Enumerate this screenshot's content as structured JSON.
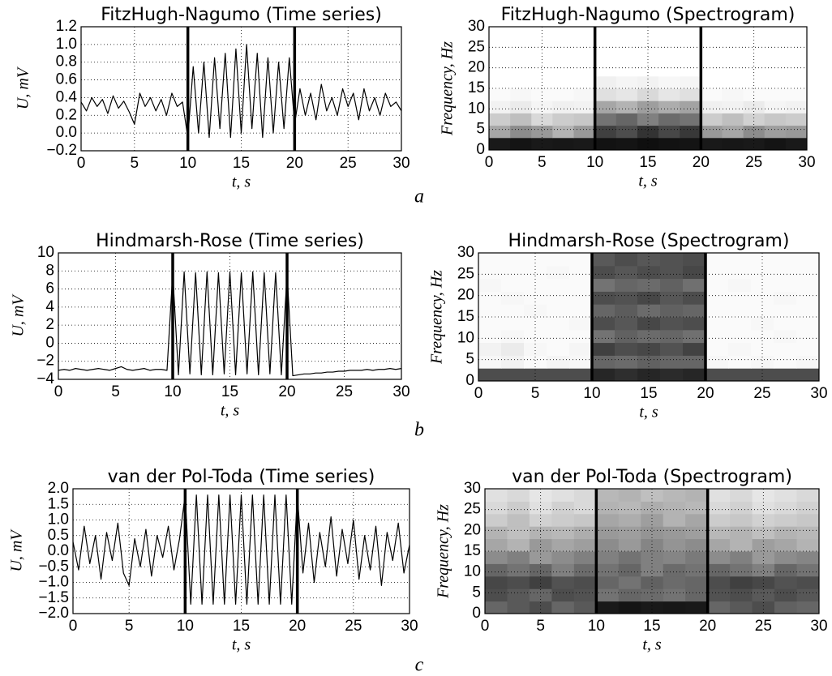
{
  "chart_data": [
    {
      "type": "line",
      "title": "FitzHugh-Nagumo (Time series)",
      "x_label": "t, s",
      "y_label": "U, mV",
      "color": "#000000",
      "x": [
        0,
        0.5,
        1,
        1.5,
        2,
        2.5,
        3,
        3.5,
        4,
        4.5,
        5,
        5.5,
        6,
        6.5,
        7,
        7.5,
        8,
        8.5,
        9,
        9.5,
        10,
        10.5,
        11,
        11.5,
        12,
        12.5,
        13,
        13.5,
        14,
        14.5,
        15,
        15.5,
        16,
        16.5,
        17,
        17.5,
        18,
        18.5,
        19,
        19.5,
        20,
        20.5,
        21,
        21.5,
        22,
        22.5,
        23,
        23.5,
        24,
        24.5,
        25,
        25.5,
        26,
        26.5,
        27,
        27.5,
        28,
        28.5,
        29,
        29.5,
        30
      ],
      "values": [
        0.35,
        0.25,
        0.4,
        0.3,
        0.38,
        0.22,
        0.42,
        0.28,
        0.36,
        0.24,
        0.1,
        0.45,
        0.3,
        0.4,
        0.25,
        0.38,
        0.2,
        0.45,
        0.3,
        0.35,
        -0.05,
        0.75,
        0.0,
        0.8,
        -0.05,
        0.85,
        0.05,
        0.9,
        -0.05,
        0.95,
        0.0,
        1.0,
        0.05,
        0.9,
        -0.05,
        0.85,
        0.0,
        0.8,
        0.05,
        0.85,
        0.1,
        0.5,
        0.2,
        0.45,
        0.15,
        0.55,
        0.25,
        0.4,
        0.2,
        0.5,
        0.3,
        0.45,
        0.15,
        0.5,
        0.25,
        0.4,
        0.2,
        0.45,
        0.3,
        0.35,
        0.25
      ],
      "vlines": [
        10,
        20
      ],
      "xlim": [
        0,
        30
      ],
      "ylim": [
        -0.2,
        1.2
      ],
      "xticks": [
        0,
        5,
        10,
        15,
        20,
        25,
        30
      ],
      "yticks": [
        {
          "value": -0.2,
          "label": "−0.2"
        },
        {
          "value": 0,
          "label": "0.0"
        },
        0.2,
        0.4,
        0.6,
        0.8,
        {
          "value": 1,
          "label": "1.0"
        },
        1.2
      ],
      "grid": true
    },
    {
      "type": "heatmap",
      "title": "FitzHugh-Nagumo (Spectrogram)",
      "x_label": "t, s",
      "y_label": "Frequency, Hz",
      "xbins": [
        0,
        2,
        4,
        6,
        8,
        10,
        12,
        14,
        16,
        18,
        20,
        22,
        24,
        26,
        28,
        30
      ],
      "ybins": [
        0,
        3,
        6,
        9,
        12,
        15,
        18,
        21,
        24,
        27,
        30
      ],
      "z": [
        [
          0.9,
          0.92,
          0.9,
          0.91,
          0.9,
          0.93,
          0.92,
          0.94,
          0.93,
          0.92,
          0.9,
          0.91,
          0.9,
          0.92,
          0.9
        ],
        [
          0.35,
          0.45,
          0.4,
          0.3,
          0.4,
          0.75,
          0.7,
          0.8,
          0.72,
          0.78,
          0.4,
          0.35,
          0.45,
          0.38,
          0.4
        ],
        [
          0.2,
          0.25,
          0.15,
          0.2,
          0.22,
          0.55,
          0.6,
          0.5,
          0.58,
          0.55,
          0.2,
          0.25,
          0.18,
          0.22,
          0.2
        ],
        [
          0.05,
          0.08,
          0.04,
          0.06,
          0.05,
          0.35,
          0.3,
          0.38,
          0.32,
          0.36,
          0.06,
          0.05,
          0.08,
          0.04,
          0.05
        ],
        [
          0.02,
          0.03,
          0.02,
          0.02,
          0.03,
          0.12,
          0.1,
          0.15,
          0.1,
          0.12,
          0.02,
          0.03,
          0.02,
          0.02,
          0.02
        ],
        [
          0,
          0,
          0,
          0,
          0,
          0.06,
          0.04,
          0.05,
          0.03,
          0.04,
          0,
          0,
          0,
          0,
          0
        ],
        [
          0,
          0,
          0,
          0,
          0,
          0,
          0,
          0,
          0,
          0,
          0,
          0,
          0,
          0,
          0
        ],
        [
          0,
          0,
          0,
          0,
          0,
          0,
          0,
          0,
          0,
          0,
          0,
          0,
          0,
          0,
          0
        ],
        [
          0,
          0,
          0,
          0,
          0,
          0,
          0,
          0,
          0,
          0,
          0,
          0,
          0,
          0,
          0
        ],
        [
          0,
          0,
          0,
          0,
          0,
          0,
          0,
          0,
          0,
          0,
          0,
          0,
          0,
          0,
          0
        ]
      ],
      "vlines": [
        10,
        20
      ],
      "xlim": [
        0,
        30
      ],
      "ylim": [
        0,
        30
      ],
      "xticks": [
        0,
        5,
        10,
        15,
        20,
        25,
        30
      ],
      "yticks": [
        0,
        5,
        10,
        15,
        20,
        25,
        30
      ],
      "grid": true
    },
    {
      "type": "line",
      "title": "Hindmarsh-Rose (Time series)",
      "x_label": "t, s",
      "y_label": "U, mV",
      "color": "#000000",
      "x": [
        0,
        0.5,
        1,
        1.5,
        2,
        2.5,
        3,
        3.5,
        4,
        4.5,
        5,
        5.5,
        6,
        6.5,
        7,
        7.5,
        8,
        8.5,
        9,
        9.5,
        10,
        10.5,
        11,
        11.5,
        12,
        12.5,
        13,
        13.5,
        14,
        14.5,
        15,
        15.5,
        16,
        16.5,
        17,
        17.5,
        18,
        18.5,
        19,
        19.5,
        20,
        20.5,
        21,
        21.5,
        22,
        22.5,
        23,
        23.5,
        24,
        24.5,
        25,
        25.5,
        26,
        26.5,
        27,
        27.5,
        28,
        28.5,
        29,
        29.5,
        30
      ],
      "values": [
        -3.0,
        -2.9,
        -3.0,
        -2.8,
        -2.9,
        -3.0,
        -2.9,
        -2.8,
        -2.9,
        -3.0,
        -2.8,
        -2.6,
        -2.9,
        -3.0,
        -2.9,
        -2.8,
        -3.0,
        -2.9,
        -2.9,
        -3.0,
        7.8,
        -3.5,
        7.9,
        -3.4,
        7.8,
        -3.5,
        7.9,
        -3.5,
        7.8,
        -3.4,
        7.9,
        -3.5,
        7.8,
        -3.4,
        7.9,
        -3.5,
        7.8,
        -3.4,
        7.8,
        -3.5,
        7.7,
        -3.6,
        -3.5,
        -3.4,
        -3.4,
        -3.3,
        -3.3,
        -3.2,
        -3.2,
        -3.1,
        -3.1,
        -3.0,
        -3.0,
        -3.0,
        -2.9,
        -3.0,
        -2.9,
        -2.9,
        -2.8,
        -2.9,
        -2.8
      ],
      "vlines": [
        10,
        20
      ],
      "xlim": [
        0,
        30
      ],
      "ylim": [
        -4,
        10
      ],
      "xticks": [
        0,
        5,
        10,
        15,
        20,
        25,
        30
      ],
      "yticks": [
        {
          "value": -4,
          "label": "−4"
        },
        {
          "value": -2,
          "label": "−2"
        },
        0,
        2,
        4,
        6,
        8,
        10
      ],
      "grid": true
    },
    {
      "type": "heatmap",
      "title": "Hindmarsh-Rose (Spectrogram)",
      "x_label": "t, s",
      "y_label": "Frequency, Hz",
      "xbins": [
        0,
        2,
        4,
        6,
        8,
        10,
        12,
        14,
        16,
        18,
        20,
        22,
        24,
        26,
        28,
        30
      ],
      "ybins": [
        0,
        3,
        6,
        9,
        12,
        15,
        18,
        21,
        24,
        27,
        30
      ],
      "z": [
        [
          0.7,
          0.7,
          0.7,
          0.7,
          0.7,
          0.85,
          0.82,
          0.85,
          0.83,
          0.85,
          0.7,
          0.7,
          0.7,
          0.7,
          0.7
        ],
        [
          0.03,
          0.05,
          0.02,
          0.04,
          0.03,
          0.6,
          0.58,
          0.62,
          0.6,
          0.6,
          0.03,
          0.02,
          0.03,
          0.02,
          0.03
        ],
        [
          0.05,
          0.08,
          0.03,
          0.02,
          0.04,
          0.75,
          0.7,
          0.72,
          0.68,
          0.74,
          0.02,
          0.03,
          0.02,
          0.02,
          0.02
        ],
        [
          0.02,
          0.03,
          0.02,
          0.02,
          0.02,
          0.55,
          0.62,
          0.58,
          0.6,
          0.56,
          0.02,
          0.02,
          0.02,
          0.03,
          0.02
        ],
        [
          0.02,
          0.02,
          0.02,
          0.02,
          0.03,
          0.7,
          0.66,
          0.72,
          0.68,
          0.7,
          0.02,
          0.02,
          0.03,
          0.02,
          0.02
        ],
        [
          0.02,
          0.02,
          0.03,
          0.02,
          0.02,
          0.6,
          0.64,
          0.58,
          0.62,
          0.6,
          0.02,
          0.02,
          0.02,
          0.02,
          0.02
        ],
        [
          0.02,
          0.03,
          0.02,
          0.02,
          0.02,
          0.7,
          0.68,
          0.72,
          0.66,
          0.7,
          0.02,
          0.02,
          0.02,
          0.03,
          0.02
        ],
        [
          0.03,
          0.02,
          0.02,
          0.02,
          0.02,
          0.55,
          0.6,
          0.58,
          0.62,
          0.56,
          0.02,
          0.03,
          0.02,
          0.02,
          0.02
        ],
        [
          0.02,
          0.02,
          0.02,
          0.03,
          0.02,
          0.7,
          0.66,
          0.7,
          0.68,
          0.72,
          0.02,
          0.02,
          0.02,
          0.02,
          0.02
        ],
        [
          0.02,
          0.02,
          0.02,
          0.02,
          0.02,
          0.65,
          0.7,
          0.66,
          0.68,
          0.7,
          0.02,
          0.02,
          0.02,
          0.02,
          0.02
        ]
      ],
      "vlines": [
        10,
        20
      ],
      "xlim": [
        0,
        30
      ],
      "ylim": [
        0,
        30
      ],
      "xticks": [
        0,
        5,
        10,
        15,
        20,
        25,
        30
      ],
      "yticks": [
        0,
        5,
        10,
        15,
        20,
        25,
        30
      ],
      "grid": true
    },
    {
      "type": "line",
      "title": "van der Pol-Toda (Time series)",
      "x_label": "t, s",
      "y_label": "U, mV",
      "color": "#000000",
      "x": [
        0,
        0.5,
        1,
        1.5,
        2,
        2.5,
        3,
        3.5,
        4,
        4.5,
        5,
        5.5,
        6,
        6.5,
        7,
        7.5,
        8,
        8.5,
        9,
        9.5,
        10,
        10.5,
        11,
        11.5,
        12,
        12.5,
        13,
        13.5,
        14,
        14.5,
        15,
        15.5,
        16,
        16.5,
        17,
        17.5,
        18,
        18.5,
        19,
        19.5,
        20,
        20.5,
        21,
        21.5,
        22,
        22.5,
        23,
        23.5,
        24,
        24.5,
        25,
        25.5,
        26,
        26.5,
        27,
        27.5,
        28,
        28.5,
        29,
        29.5,
        30
      ],
      "values": [
        0.3,
        -0.6,
        0.8,
        -0.4,
        0.5,
        -0.9,
        0.6,
        -0.3,
        0.9,
        -0.7,
        -1.1,
        0.4,
        -0.5,
        0.7,
        -0.8,
        0.5,
        -0.2,
        0.8,
        -0.6,
        0.4,
        1.8,
        -1.7,
        1.8,
        -1.7,
        1.8,
        -1.7,
        1.8,
        -1.7,
        1.8,
        -1.7,
        1.8,
        -1.7,
        1.8,
        -1.7,
        1.8,
        -1.7,
        1.8,
        -1.7,
        1.8,
        -1.7,
        1.8,
        -0.7,
        0.9,
        -1.0,
        0.6,
        -0.5,
        1.1,
        -0.8,
        0.7,
        -0.4,
        1.0,
        -0.9,
        0.5,
        -0.6,
        0.8,
        -1.1,
        0.6,
        -0.3,
        0.9,
        -0.7,
        0.2
      ],
      "vlines": [
        10,
        20
      ],
      "xlim": [
        0,
        30
      ],
      "ylim": [
        -2,
        2
      ],
      "xticks": [
        0,
        5,
        10,
        15,
        20,
        25,
        30
      ],
      "yticks": [
        {
          "value": -2,
          "label": "−2.0"
        },
        {
          "value": -1.5,
          "label": "−1.5"
        },
        {
          "value": -1,
          "label": "−1.0"
        },
        {
          "value": -0.5,
          "label": "−0.5"
        },
        {
          "value": 0,
          "label": "0.0"
        },
        0.5,
        {
          "value": 1,
          "label": "1.0"
        },
        1.5,
        {
          "value": 2,
          "label": "2.0"
        }
      ],
      "grid": true
    },
    {
      "type": "heatmap",
      "title": "van der Pol-Toda (Spectrogram)",
      "x_label": "t, s",
      "y_label": "Frequency, Hz",
      "xbins": [
        0,
        2,
        4,
        6,
        8,
        10,
        12,
        14,
        16,
        18,
        20,
        22,
        24,
        26,
        28,
        30
      ],
      "ybins": [
        0,
        3,
        6,
        9,
        12,
        15,
        18,
        21,
        24,
        27,
        30
      ],
      "z": [
        [
          0.6,
          0.65,
          0.7,
          0.6,
          0.65,
          0.9,
          0.92,
          0.9,
          0.91,
          0.9,
          0.6,
          0.65,
          0.7,
          0.62,
          0.6
        ],
        [
          0.7,
          0.65,
          0.6,
          0.7,
          0.68,
          0.55,
          0.6,
          0.58,
          0.55,
          0.6,
          0.68,
          0.7,
          0.65,
          0.7,
          0.66
        ],
        [
          0.72,
          0.7,
          0.75,
          0.68,
          0.7,
          0.6,
          0.55,
          0.62,
          0.58,
          0.6,
          0.7,
          0.75,
          0.72,
          0.68,
          0.7
        ],
        [
          0.6,
          0.55,
          0.6,
          0.5,
          0.58,
          0.55,
          0.6,
          0.5,
          0.58,
          0.55,
          0.6,
          0.55,
          0.5,
          0.6,
          0.55
        ],
        [
          0.45,
          0.5,
          0.4,
          0.45,
          0.5,
          0.5,
          0.55,
          0.5,
          0.48,
          0.52,
          0.45,
          0.5,
          0.4,
          0.45,
          0.48
        ],
        [
          0.35,
          0.3,
          0.4,
          0.35,
          0.38,
          0.45,
          0.4,
          0.48,
          0.42,
          0.45,
          0.35,
          0.3,
          0.38,
          0.35,
          0.3
        ],
        [
          0.3,
          0.25,
          0.3,
          0.28,
          0.32,
          0.4,
          0.38,
          0.42,
          0.4,
          0.38,
          0.28,
          0.3,
          0.25,
          0.3,
          0.28
        ],
        [
          0.2,
          0.25,
          0.18,
          0.2,
          0.22,
          0.35,
          0.32,
          0.38,
          0.3,
          0.35,
          0.2,
          0.22,
          0.18,
          0.2,
          0.22
        ],
        [
          0.15,
          0.2,
          0.12,
          0.18,
          0.15,
          0.3,
          0.28,
          0.32,
          0.3,
          0.28,
          0.15,
          0.18,
          0.12,
          0.15,
          0.18
        ],
        [
          0.12,
          0.15,
          0.1,
          0.12,
          0.15,
          0.28,
          0.3,
          0.25,
          0.28,
          0.3,
          0.12,
          0.15,
          0.1,
          0.12,
          0.15
        ]
      ],
      "vlines": [
        10,
        20
      ],
      "xlim": [
        0,
        30
      ],
      "ylim": [
        0,
        30
      ],
      "xticks": [
        0,
        5,
        10,
        15,
        20,
        25,
        30
      ],
      "yticks": [
        0,
        5,
        10,
        15,
        20,
        25,
        30
      ],
      "grid": true
    }
  ],
  "panel_labels": [
    "a",
    "b",
    "c"
  ]
}
